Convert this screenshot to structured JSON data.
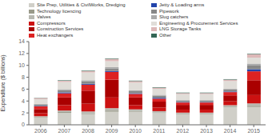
{
  "chart_data": {
    "type": "bar",
    "stacked": true,
    "y_label": "Expenditure ($ billions)",
    "categories": [
      "2006",
      "2007",
      "2008",
      "2009",
      "2010",
      "2011",
      "2012",
      "2013",
      "2014",
      "2015"
    ],
    "series": [
      {
        "name": "Site Prep, Utilities & CivilWorks, Dredging",
        "color": "#d0cfc8",
        "values": [
          1.2,
          2.0,
          1.8,
          2.2,
          2.2,
          2.0,
          1.8,
          1.8,
          3.0,
          3.0
        ]
      },
      {
        "name": "Technology licencing",
        "color": "#9a9a8a",
        "values": [
          0.1,
          0.15,
          0.15,
          0.2,
          0.15,
          0.1,
          0.1,
          0.1,
          0.1,
          0.2
        ]
      },
      {
        "name": "Valves",
        "color": "#b8b8b0",
        "values": [
          0.15,
          0.25,
          0.3,
          0.4,
          0.25,
          0.2,
          0.15,
          0.15,
          0.2,
          0.4
        ]
      },
      {
        "name": "Compressors",
        "color": "#cc1111",
        "values": [
          0.5,
          0.9,
          1.3,
          1.8,
          0.7,
          0.6,
          0.5,
          0.5,
          0.65,
          1.4
        ]
      },
      {
        "name": "Construction Services",
        "color": "#aa0000",
        "values": [
          0.7,
          1.3,
          2.2,
          3.0,
          1.3,
          1.0,
          0.8,
          0.8,
          1.0,
          2.5
        ]
      },
      {
        "name": "Heat exchangers",
        "color": "#dd2222",
        "values": [
          0.45,
          0.7,
          1.0,
          1.3,
          0.6,
          0.5,
          0.4,
          0.4,
          0.55,
          1.5
        ]
      },
      {
        "name": "Jetty & Loading arms",
        "color": "#2244aa",
        "values": [
          0.08,
          0.15,
          0.15,
          0.15,
          0.1,
          0.15,
          0.08,
          0.08,
          0.1,
          0.35
        ]
      },
      {
        "name": "Pipework",
        "color": "#888888",
        "values": [
          0.25,
          0.4,
          0.45,
          0.45,
          0.35,
          0.35,
          0.25,
          0.25,
          0.35,
          0.7
        ]
      },
      {
        "name": "Slug catchers",
        "color": "#aaaaaa",
        "values": [
          0.08,
          0.15,
          0.15,
          0.2,
          0.15,
          0.15,
          0.08,
          0.08,
          0.1,
          0.25
        ]
      },
      {
        "name": "Engineering & Procurement Services",
        "color": "#e0ddd8",
        "values": [
          0.8,
          1.2,
          1.3,
          1.0,
          1.3,
          1.0,
          1.0,
          1.0,
          1.3,
          1.0
        ]
      },
      {
        "name": "LNG Storage Tanks",
        "color": "#ddb8b8",
        "values": [
          0.18,
          0.2,
          0.25,
          0.4,
          0.25,
          0.2,
          0.18,
          0.18,
          0.25,
          0.6
        ]
      },
      {
        "name": "Other",
        "color": "#336655",
        "values": [
          0.04,
          0.08,
          0.08,
          0.08,
          0.08,
          0.08,
          0.08,
          0.08,
          0.08,
          0.08
        ]
      }
    ],
    "ylim": [
      0,
      14
    ],
    "yticks": [
      0,
      2,
      4,
      6,
      8,
      10,
      12,
      14
    ],
    "grid": false,
    "legend": "top"
  }
}
